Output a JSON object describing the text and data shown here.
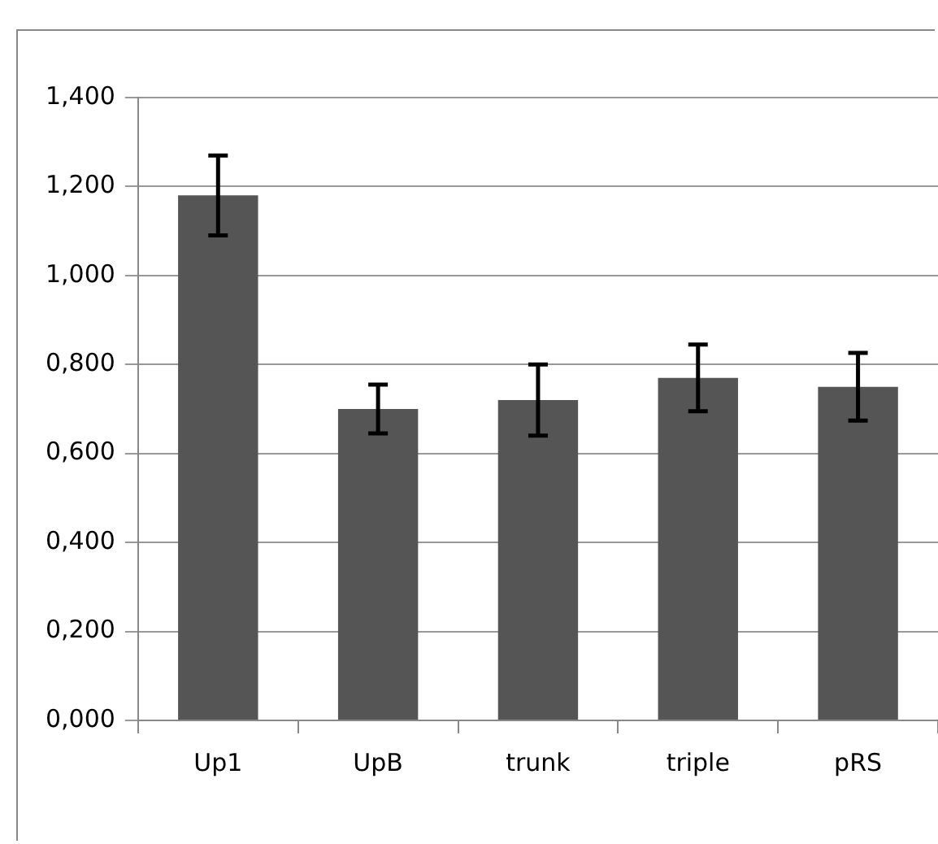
{
  "chart_data": {
    "type": "bar",
    "categories": [
      "Up1",
      "UpB",
      "trunk",
      "triple",
      "pRS"
    ],
    "values": [
      1.18,
      0.7,
      0.72,
      0.77,
      0.75
    ],
    "errors": [
      0.09,
      0.055,
      0.08,
      0.075,
      0.076
    ],
    "color": "#555555",
    "ylim": [
      0,
      1.4
    ],
    "yticks": [
      {
        "value": 0,
        "label": "0,000"
      },
      {
        "value": 0.2,
        "label": "0,200"
      },
      {
        "value": 0.4,
        "label": "0,400"
      },
      {
        "value": 0.6,
        "label": "0,600"
      },
      {
        "value": 0.8,
        "label": "0,800"
      },
      {
        "value": 1.0,
        "label": "1,000"
      },
      {
        "value": 1.2,
        "label": "1,200"
      },
      {
        "value": 1.4,
        "label": "1,400"
      }
    ],
    "grid": "y",
    "legend": false
  }
}
